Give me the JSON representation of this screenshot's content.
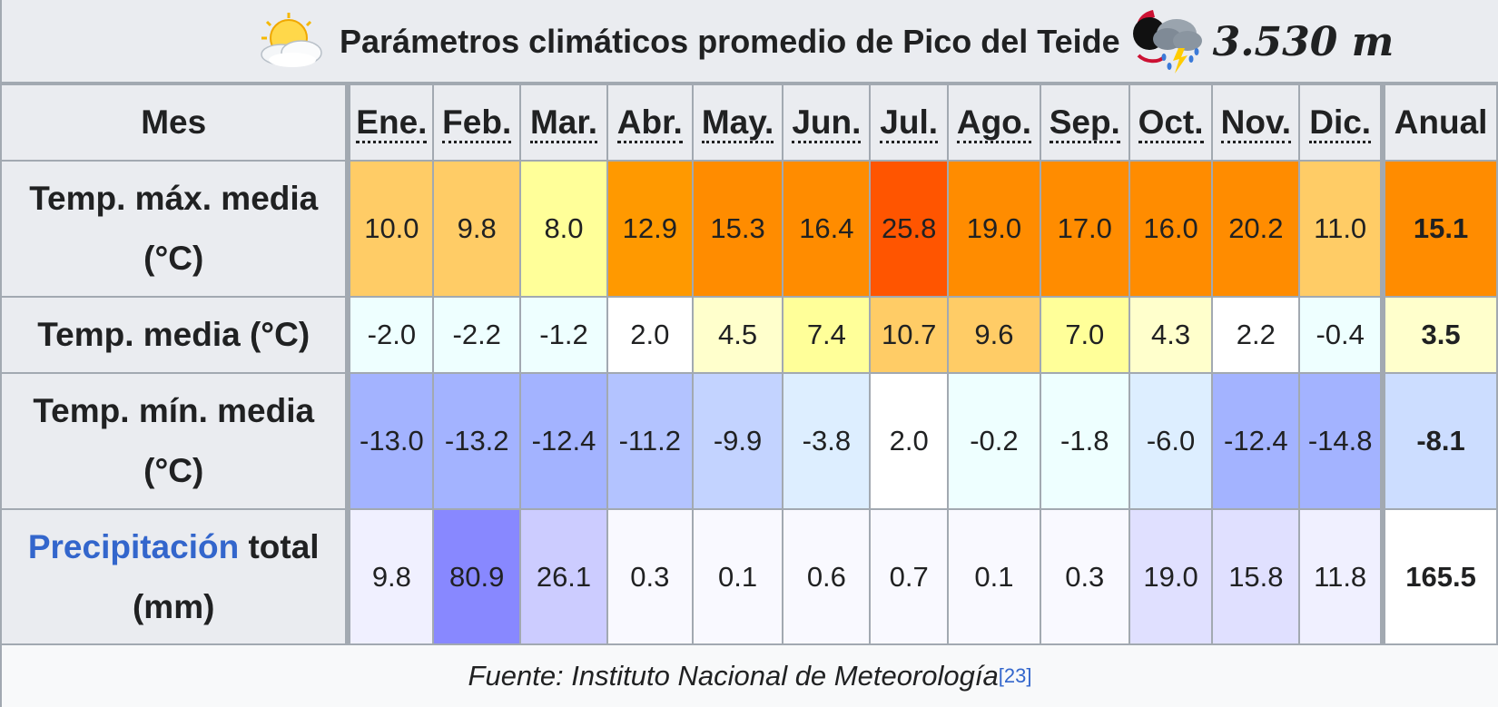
{
  "table": {
    "title": "Parámetros climáticos promedio de Pico del Teide",
    "altitude": "3.530 m",
    "title_icon_left": "sun-cloud-icon",
    "title_icon_right": "storm-icon",
    "corner_label": "Mes",
    "months": [
      "Ene.",
      "Feb.",
      "Mar.",
      "Abr.",
      "May.",
      "Jun.",
      "Jul.",
      "Ago.",
      "Sep.",
      "Oct.",
      "Nov.",
      "Dic."
    ],
    "annual_label": "Anual",
    "rows": [
      {
        "label": "Temp. máx. media (°C)",
        "values": [
          "10.0",
          "9.8",
          "8.0",
          "12.9",
          "15.3",
          "16.4",
          "25.8",
          "19.0",
          "17.0",
          "16.0",
          "20.2",
          "11.0"
        ],
        "annual": "15.1",
        "colors": [
          "#ffcc66",
          "#ffcc66",
          "#ffff99",
          "#ff9900",
          "#ff8c00",
          "#ff8c00",
          "#ff5500",
          "#ff8c00",
          "#ff8c00",
          "#ff8c00",
          "#ff8c00",
          "#ffcc66"
        ],
        "annual_color": "#ff8c00"
      },
      {
        "label": "Temp. media (°C)",
        "values": [
          "-2.0",
          "-2.2",
          "-1.2",
          "2.0",
          "4.5",
          "7.4",
          "10.7",
          "9.6",
          "7.0",
          "4.3",
          "2.2",
          "-0.4"
        ],
        "annual": "3.5",
        "colors": [
          "#eeffff",
          "#eeffff",
          "#eeffff",
          "#ffffff",
          "#ffffcc",
          "#ffff99",
          "#ffcc66",
          "#ffcc66",
          "#ffff99",
          "#ffffcc",
          "#ffffff",
          "#eeffff"
        ],
        "annual_color": "#ffffcc"
      },
      {
        "label": "Temp. mín. media (°C)",
        "values": [
          "-13.0",
          "-13.2",
          "-12.4",
          "-11.2",
          "-9.9",
          "-3.8",
          "2.0",
          "-0.2",
          "-1.8",
          "-6.0",
          "-12.4",
          "-14.8"
        ],
        "annual": "-8.1",
        "colors": [
          "#a3b3ff",
          "#a3b3ff",
          "#a3b3ff",
          "#b3c3ff",
          "#c3d3ff",
          "#ddeeff",
          "#ffffff",
          "#eeffff",
          "#eeffff",
          "#ddeeff",
          "#a3b3ff",
          "#a3b3ff"
        ],
        "annual_color": "#ccddff"
      },
      {
        "label_link": "Precipitación",
        "label_rest": "total (mm)",
        "values": [
          "9.8",
          "80.9",
          "26.1",
          "0.3",
          "0.1",
          "0.6",
          "0.7",
          "0.1",
          "0.3",
          "19.0",
          "15.8",
          "11.8"
        ],
        "annual": "165.5",
        "colors": [
          "#f0f0ff",
          "#8888ff",
          "#ccccff",
          "#f9f9ff",
          "#f9f9ff",
          "#f9f9ff",
          "#f9f9ff",
          "#f9f9ff",
          "#f9f9ff",
          "#e0e0ff",
          "#e0e0ff",
          "#f0f0ff"
        ],
        "annual_color": "#ffffff"
      }
    ],
    "source_text": "Fuente: Instituto Nacional de Meteorología",
    "source_ref": "[23]"
  }
}
